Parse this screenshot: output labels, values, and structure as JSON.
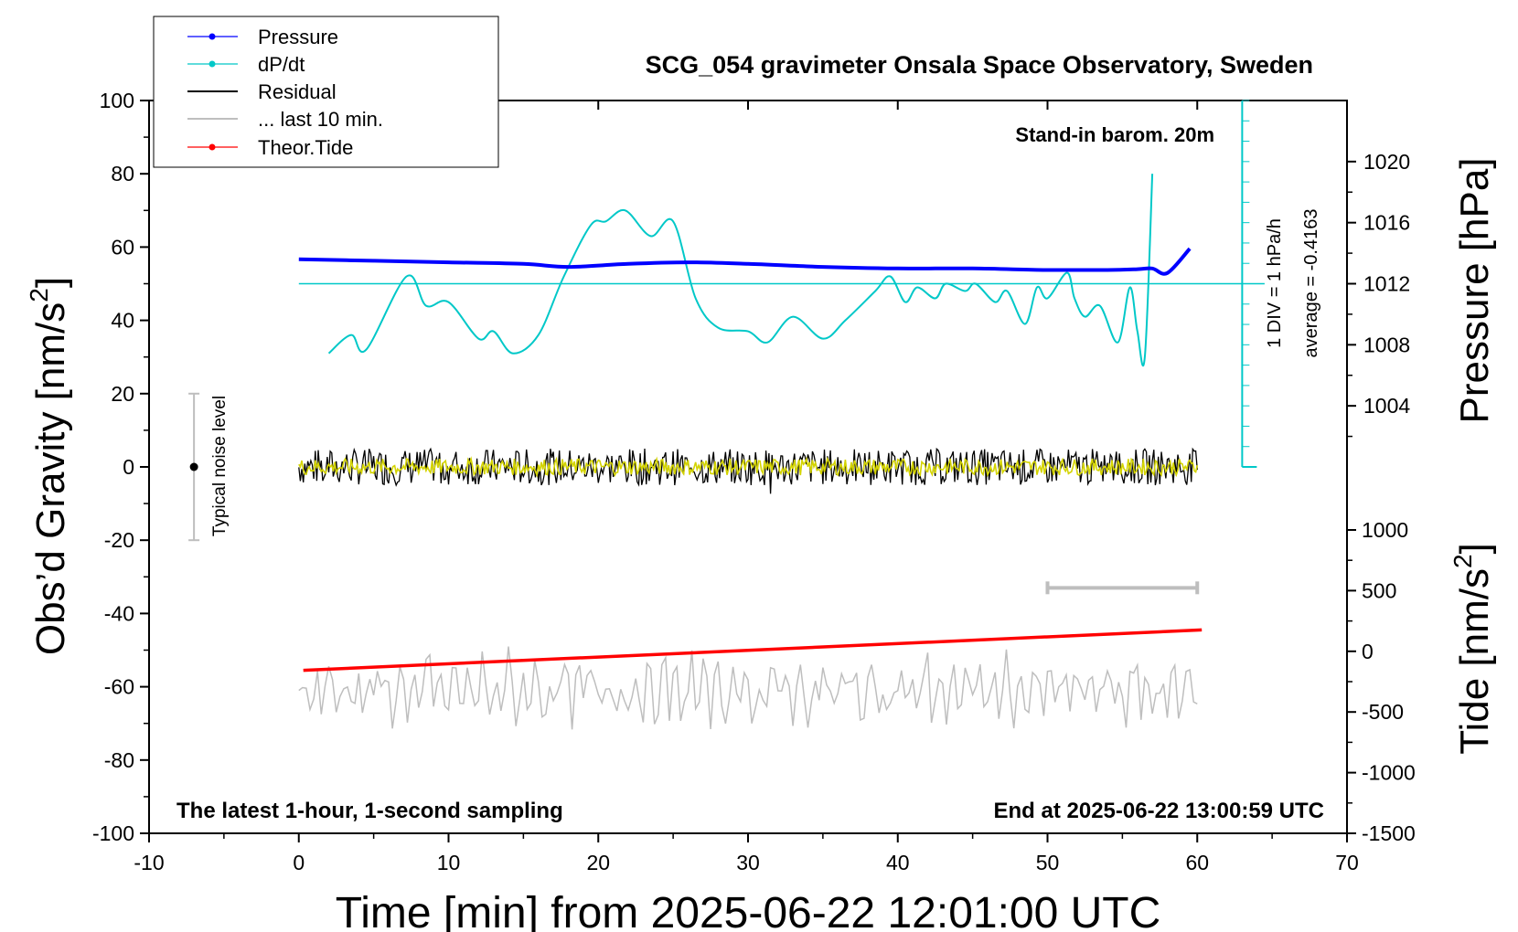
{
  "chart_data": {
    "type": "line",
    "title": "SCG_054 gravimeter Onsala Space Observatory, Sweden",
    "xlabel": "Time [min] from 2025-06-22 12:01:00 UTC",
    "ylabel_left_main": "Obs’d Gravity [nm/s",
    "ylabel_left_sup": "2",
    "ylabel_left_end": "]",
    "ylabel_right_pressure": "Pressure [hPa]",
    "ylabel_right_tide_main": "Tide [nm/s",
    "ylabel_right_tide_sup": "2",
    "ylabel_right_tide_end": "]",
    "xlim": [
      -10,
      70
    ],
    "ylim": [
      -100,
      100
    ],
    "pressure_lim": [
      1000,
      1024
    ],
    "tide_lim": [
      -1500,
      1500
    ],
    "x_ticks": [
      "-10",
      "0",
      "10",
      "20",
      "30",
      "40",
      "50",
      "60",
      "70"
    ],
    "y_ticks": [
      "100",
      "80",
      "60",
      "40",
      "20",
      "0",
      "-20",
      "-40",
      "-60",
      "-80",
      "-100"
    ],
    "pressure_ticks": [
      "1020",
      "1016",
      "1012",
      "1008",
      "1004"
    ],
    "tide_ticks": [
      "1000",
      "500",
      "0",
      "-500",
      "-1000",
      "-1500"
    ],
    "legend_position": "top-left",
    "legend": [
      {
        "name": "Pressure",
        "color": "#0000ff",
        "marker": true
      },
      {
        "name": "dP/dt",
        "color": "#00c8c8",
        "marker": true
      },
      {
        "name": "Residual",
        "color": "#000000",
        "marker": false
      },
      {
        "name": "... last 10 min.",
        "color": "#bebebe",
        "marker": false
      },
      {
        "name": "Theor.Tide",
        "color": "#ff0000",
        "marker": true
      }
    ],
    "annotations": {
      "stand_in": "Stand-in barom. 20m",
      "dpdt_div": "1 DIV = 1 hPa/h",
      "dpdt_avg": "average = -0.4163",
      "noise": "Typical noise level",
      "bottom_left": "The latest 1-hour, 1-second sampling",
      "bottom_right": "End at 2025-06-22 13:00:59 UTC"
    },
    "series": [
      {
        "name": "Pressure",
        "axis": "pressure_hPa",
        "x": [
          0,
          5,
          10,
          15,
          18,
          22,
          26,
          30,
          35,
          40,
          45,
          50,
          54,
          56,
          57,
          58,
          59.5
        ],
        "values": [
          1013.6,
          1013.5,
          1013.4,
          1013.3,
          1013.1,
          1013.3,
          1013.4,
          1013.3,
          1013.1,
          1013.0,
          1013.0,
          1012.9,
          1012.9,
          1012.95,
          1013.0,
          1012.7,
          1014.3
        ]
      },
      {
        "name": "dP/dt",
        "axis": "gravity_grid",
        "x": [
          2,
          3.5,
          4.5,
          7.2,
          8.5,
          10,
          12,
          13,
          14.3,
          16,
          17.7,
          19.5,
          20.5,
          21.8,
          23.5,
          25,
          26.5,
          28,
          30,
          31.3,
          33,
          35,
          36.5,
          38.5,
          39.5,
          40.5,
          41.3,
          42.5,
          43.2,
          44.5,
          45.2,
          46.5,
          47.3,
          48.5,
          49.3,
          50,
          51.3,
          51.8,
          52.5,
          53.5,
          54.7,
          55.5,
          56,
          56.5,
          57
        ],
        "values": [
          31,
          36,
          32,
          52,
          44,
          45,
          35,
          37,
          31,
          36,
          52,
          66,
          67,
          70,
          63,
          67,
          46,
          38,
          37,
          34,
          41,
          35,
          40,
          48,
          52,
          45,
          49,
          46,
          50,
          48,
          50,
          45,
          48,
          39,
          49,
          46,
          53,
          46,
          41,
          44,
          34,
          49,
          37,
          30,
          80
        ]
      },
      {
        "name": "Residual",
        "axis": "gravity",
        "x": [
          0,
          60
        ],
        "values": [
          0,
          0
        ],
        "noise_amplitude": 5
      },
      {
        "name": "... last 10 min.",
        "axis": "gravity",
        "x": [
          0,
          60
        ],
        "values": [
          -62,
          -62
        ]
      },
      {
        "name": "Theor.Tide",
        "axis": "gravity",
        "x": [
          0.3,
          60.3
        ],
        "values": [
          -55.5,
          -44.5
        ]
      },
      {
        "name": "dP/dt reference",
        "axis": "gravity",
        "x": [
          0,
          64.5
        ],
        "values": [
          50,
          50
        ]
      }
    ],
    "noise_bar": {
      "x": -7,
      "low": -20,
      "high": 20,
      "center": 0
    },
    "ten_min_bar": {
      "x_start": 50,
      "x_end": 60,
      "y": -33
    }
  }
}
